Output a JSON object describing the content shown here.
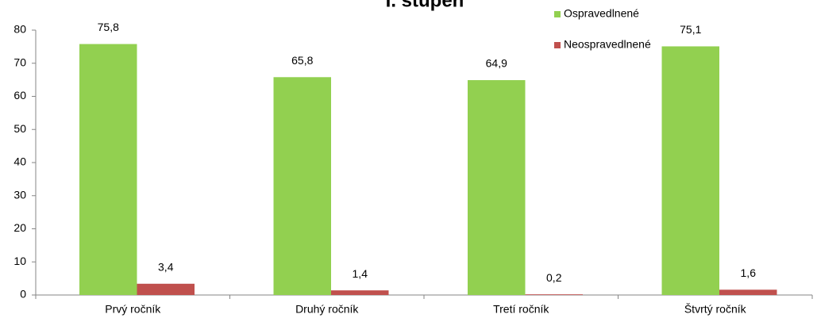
{
  "chart_data": {
    "type": "bar",
    "title": "I. stupeň",
    "categories": [
      "Prvý ročník",
      "Druhý ročník",
      "Tretí ročník",
      "Štvrtý ročník"
    ],
    "series": [
      {
        "name": "Ospravedlnené",
        "color": "#92d050",
        "values": [
          75.8,
          65.8,
          64.9,
          75.1
        ],
        "value_labels": [
          "75,8",
          "65,8",
          "64,9",
          "75,1"
        ]
      },
      {
        "name": "Neospravedlnené",
        "color": "#c0504d",
        "values": [
          3.4,
          1.4,
          0.2,
          1.6
        ],
        "value_labels": [
          "3,4",
          "1,4",
          "0,2",
          "1,6"
        ]
      }
    ],
    "ylim": [
      0,
      80
    ],
    "yticks": [
      0,
      10,
      20,
      30,
      40,
      50,
      60,
      70,
      80
    ],
    "grid": false,
    "legend": "top-right"
  }
}
